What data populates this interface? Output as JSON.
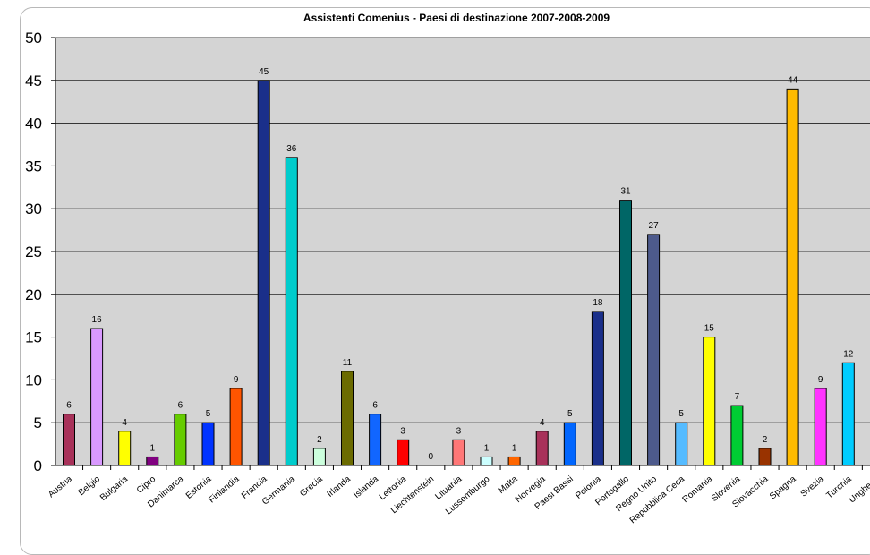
{
  "chart_data": {
    "type": "bar",
    "title": "Assistenti Comenius - Paesi di destinazione 2007-2008-2009",
    "xlabel": "",
    "ylabel": "",
    "ylim": [
      0,
      50
    ],
    "yticks": [
      "0",
      "5",
      "10",
      "15",
      "20",
      "25",
      "30",
      "35",
      "40",
      "45",
      "50"
    ],
    "grid": true,
    "legend": "none",
    "plot_background": "#d4d4d4",
    "categories": [
      "Austria",
      "Belgio",
      "Bulgaria",
      "Cipro",
      "Danimarca",
      "Estonia",
      "Finlandia",
      "Francia",
      "Germania",
      "Grecia",
      "Irlanda",
      "Islanda",
      "Lettonia",
      "Liechtenstein",
      "Lituania",
      "Lussemburgo",
      "Malta",
      "Norvegia",
      "Paesi Bassi",
      "Polonia",
      "Portogallo",
      "Regno Unito",
      "Repubblica Ceca",
      "Romania",
      "Slovenia",
      "Slovacchia",
      "Spagna",
      "Svezia",
      "Turchia",
      "Ungheria"
    ],
    "values": [
      6,
      16,
      4,
      1,
      6,
      5,
      9,
      45,
      36,
      2,
      11,
      6,
      3,
      0,
      3,
      1,
      1,
      4,
      5,
      18,
      31,
      27,
      5,
      15,
      7,
      2,
      44,
      9,
      12,
      null
    ],
    "data_labels": [
      "6",
      "16",
      "4",
      "1",
      "6",
      "5",
      "9",
      "45",
      "36",
      "2",
      "11",
      "6",
      "3",
      "0",
      "3",
      "1",
      "1",
      "4",
      "5",
      "18",
      "31",
      "27",
      "5",
      "15",
      "7",
      "2",
      "44",
      "9",
      "12",
      ""
    ],
    "colors": [
      "#a8325a",
      "#d999ff",
      "#ffff00",
      "#800080",
      "#66cc00",
      "#0033ff",
      "#ff5500",
      "#1a2f8a",
      "#00cccc",
      "#ccffdd",
      "#6b6b00",
      "#1166ff",
      "#ff0000",
      "#cccccc",
      "#ff7777",
      "#ccffff",
      "#ff6600",
      "#a8325a",
      "#0066ff",
      "#1a2f8a",
      "#006666",
      "#4d5a8c",
      "#55bbff",
      "#ffff00",
      "#00cc33",
      "#993300",
      "#ffbb00",
      "#ff33ff",
      "#00ccff",
      "#cccccc"
    ]
  }
}
